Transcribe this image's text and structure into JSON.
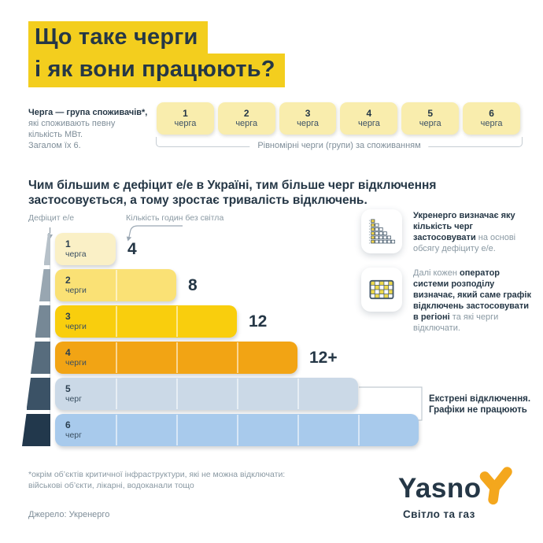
{
  "title": {
    "line1": "Що таке черги",
    "line2": "і як вони працюють?"
  },
  "intro": {
    "heading": "Черга — група споживачів*,",
    "body_lines": [
      "які споживають певну",
      "кількість МВт.",
      "Загалом їх 6."
    ]
  },
  "queue_row": {
    "boxes": [
      {
        "num": "1",
        "word": "черга"
      },
      {
        "num": "2",
        "word": "черга"
      },
      {
        "num": "3",
        "word": "черга"
      },
      {
        "num": "4",
        "word": "черга"
      },
      {
        "num": "5",
        "word": "черга"
      },
      {
        "num": "6",
        "word": "черга"
      }
    ],
    "caption": "Рівномірні черги (групи) за споживанням"
  },
  "statement": "Чим більшим є дефіцит е/е в Україні, тим більше черг відключення застосовується, а тому зростає тривалість відключень.",
  "chart_data": {
    "type": "bar",
    "orientation": "horizontal",
    "ylabel": "Дефіцит е/е",
    "xlabel": "Кількість годин без світла",
    "categories": [
      "1 черга",
      "2 черги",
      "3 черги",
      "4 черги",
      "5 черг",
      "6 черг"
    ],
    "bar_units": [
      1,
      2,
      3,
      4,
      5,
      6
    ],
    "hour_labels": [
      "4",
      "8",
      "12",
      "12+",
      "",
      ""
    ],
    "rows": [
      {
        "num": "1",
        "word": "черга",
        "units": 1,
        "hours": "4",
        "color": "#FAF0C6"
      },
      {
        "num": "2",
        "word": "черги",
        "units": 2,
        "hours": "8",
        "color": "#FAE175"
      },
      {
        "num": "3",
        "word": "черги",
        "units": 3,
        "hours": "12",
        "color": "#F9CE0D"
      },
      {
        "num": "4",
        "word": "черги",
        "units": 4,
        "hours": "12+",
        "color": "#F2A414"
      },
      {
        "num": "5",
        "word": "черг",
        "units": 5,
        "hours": "",
        "color": "#CBD9E7"
      },
      {
        "num": "6",
        "word": "черг",
        "units": 6,
        "hours": "",
        "color": "#A8CAEC"
      }
    ],
    "wedge_colors": [
      "#B7C1C9",
      "#98A6B1",
      "#768896",
      "#576C7D",
      "#3B5266",
      "#22384C"
    ],
    "emergency_lines": [
      "Екстрені відключення.",
      "Графіки не працюють"
    ],
    "legend_position": "none",
    "grid": false
  },
  "callouts": [
    {
      "icon": "deficit-steps-icon",
      "bold": "Укренерго визначає яку кількість черг застосовувати",
      "regular": " на основі обсягу дефіциту е/е."
    },
    {
      "icon": "schedule-grid-icon",
      "pre": "Далі кожен ",
      "bold": "оператор системи розподілу визначає, який саме графік відключень застосовувати в регіоні",
      "post": " та які черги відключати."
    }
  ],
  "footnote_lines": [
    "*окрім об’єктів критичної інфраструктури, які не можна відключати:",
    "військові об’єкти, лікарні, водоканали тощо"
  ],
  "source": "Джерело: Укренерго",
  "logo": {
    "name": "Yasno",
    "tagline": "Світло та газ"
  },
  "colors": {
    "navy": "#253746",
    "highlight_yellow": "#F3CE1E",
    "queue_box_yellow": "#F9EDAD",
    "gray_text": "#8A99A3",
    "logo_orange": "#F4A71D"
  }
}
